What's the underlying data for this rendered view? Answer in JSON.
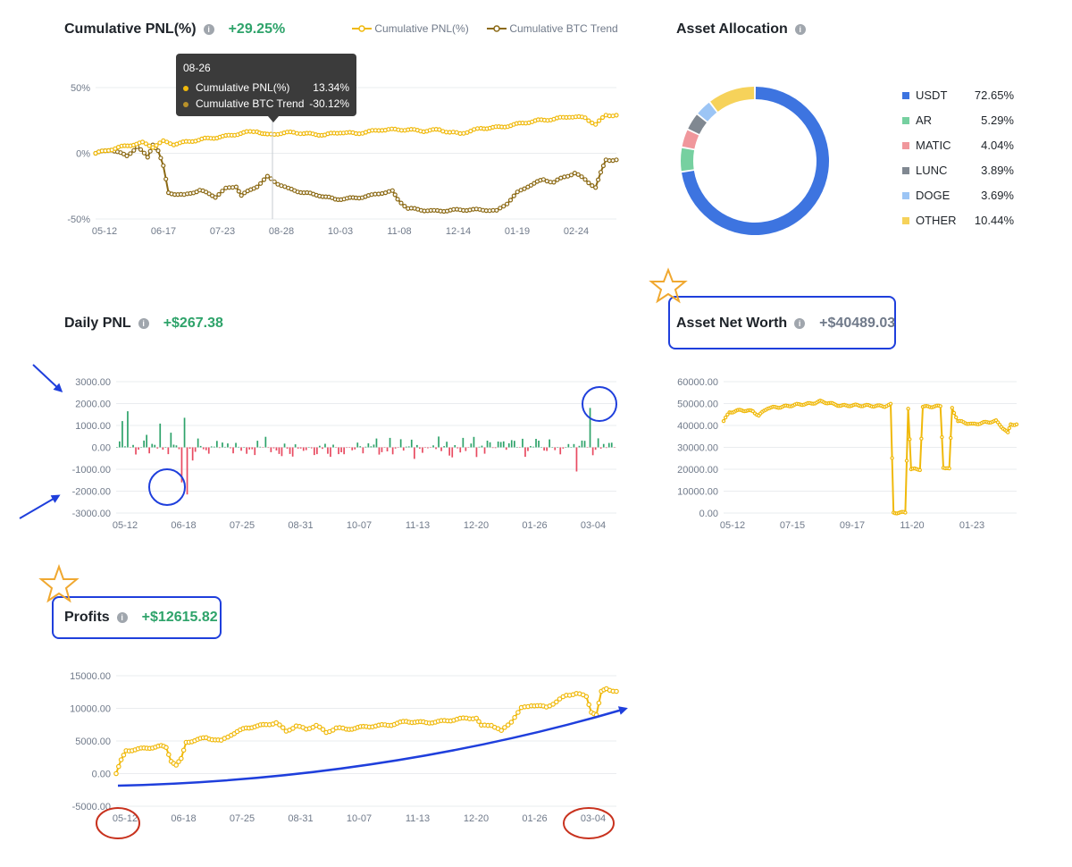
{
  "cumulative_pnl": {
    "title": "Cumulative PNL(%)",
    "value": "+29.25%",
    "legend": [
      "Cumulative PNL(%)",
      "Cumulative BTC Trend"
    ],
    "tooltip": {
      "date": "08-26",
      "rows": [
        {
          "name": "Cumulative PNL(%)",
          "value": "13.34%"
        },
        {
          "name": "Cumulative BTC Trend",
          "value": "-30.12%"
        }
      ]
    }
  },
  "asset_allocation": {
    "title": "Asset Allocation",
    "items": [
      {
        "name": "USDT",
        "pct": "72.65%"
      },
      {
        "name": "AR",
        "pct": "5.29%"
      },
      {
        "name": "MATIC",
        "pct": "4.04%"
      },
      {
        "name": "LUNC",
        "pct": "3.89%"
      },
      {
        "name": "DOGE",
        "pct": "3.69%"
      },
      {
        "name": "OTHER",
        "pct": "10.44%"
      }
    ]
  },
  "daily_pnl": {
    "title": "Daily PNL",
    "value": "+$267.38"
  },
  "asset_net_worth": {
    "title": "Asset Net Worth",
    "value": "+$40489.03"
  },
  "profits": {
    "title": "Profits",
    "value": "+$12615.82"
  },
  "colors": {
    "pnl": "#f0b90b",
    "btc": "#8b6914",
    "positive": "#2ea36a",
    "negative": "#e84b61",
    "usdt": "#3d74e0",
    "ar": "#76d0a0",
    "matic": "#f0979c",
    "lunc": "#808891",
    "doge": "#9cc5f5",
    "other": "#f6d25a",
    "annotation_blue": "#1f3fdc",
    "annotation_red": "#c8321e",
    "star": "#f0a830"
  },
  "chart_data": [
    {
      "type": "line",
      "title": "Cumulative PNL(%)",
      "x_ticks": [
        "05-12",
        "06-17",
        "07-23",
        "08-28",
        "10-03",
        "11-08",
        "12-14",
        "01-19",
        "02-24"
      ],
      "y_ticks": [
        "50%",
        "0%",
        "-50%"
      ],
      "ylim": [
        -50,
        50
      ],
      "grid": true,
      "legend_position": "top-right",
      "series": [
        {
          "name": "Cumulative PNL(%)",
          "points": [
            [
              0,
              0
            ],
            [
              0.05,
              5
            ],
            [
              0.09,
              8
            ],
            [
              0.11,
              5
            ],
            [
              0.13,
              9
            ],
            [
              0.15,
              7
            ],
            [
              0.18,
              9
            ],
            [
              0.21,
              11
            ],
            [
              0.25,
              13
            ],
            [
              0.29,
              16
            ],
            [
              0.31,
              17
            ],
            [
              0.32,
              15
            ],
            [
              0.33,
              14
            ],
            [
              0.35,
              15
            ],
            [
              0.38,
              16
            ],
            [
              0.4,
              15
            ],
            [
              0.44,
              14
            ],
            [
              0.47,
              16
            ],
            [
              0.5,
              15
            ],
            [
              0.55,
              18
            ],
            [
              0.6,
              18
            ],
            [
              0.63,
              17
            ],
            [
              0.66,
              18
            ],
            [
              0.68,
              16
            ],
            [
              0.7,
              15
            ],
            [
              0.72,
              17
            ],
            [
              0.74,
              19
            ],
            [
              0.78,
              20
            ],
            [
              0.82,
              23
            ],
            [
              0.85,
              25
            ],
            [
              0.88,
              26
            ],
            [
              0.91,
              28
            ],
            [
              0.94,
              27
            ],
            [
              0.96,
              22
            ],
            [
              0.98,
              29
            ],
            [
              1.0,
              29
            ]
          ]
        },
        {
          "name": "Cumulative BTC Trend",
          "points": [
            [
              0,
              0
            ],
            [
              0.03,
              3
            ],
            [
              0.06,
              -2
            ],
            [
              0.08,
              5
            ],
            [
              0.1,
              -3
            ],
            [
              0.11,
              7
            ],
            [
              0.12,
              2
            ],
            [
              0.13,
              -10
            ],
            [
              0.14,
              -30
            ],
            [
              0.17,
              -32
            ],
            [
              0.2,
              -28
            ],
            [
              0.23,
              -33
            ],
            [
              0.25,
              -27
            ],
            [
              0.27,
              -25
            ],
            [
              0.28,
              -32
            ],
            [
              0.31,
              -25
            ],
            [
              0.33,
              -18
            ],
            [
              0.35,
              -23
            ],
            [
              0.37,
              -27
            ],
            [
              0.4,
              -30
            ],
            [
              0.43,
              -32
            ],
            [
              0.46,
              -35
            ],
            [
              0.5,
              -34
            ],
            [
              0.53,
              -32
            ],
            [
              0.55,
              -30
            ],
            [
              0.57,
              -29
            ],
            [
              0.58,
              -35
            ],
            [
              0.6,
              -42
            ],
            [
              0.65,
              -44
            ],
            [
              0.7,
              -43
            ],
            [
              0.75,
              -43
            ],
            [
              0.77,
              -44
            ],
            [
              0.79,
              -38
            ],
            [
              0.81,
              -30
            ],
            [
              0.83,
              -25
            ],
            [
              0.86,
              -20
            ],
            [
              0.88,
              -22
            ],
            [
              0.9,
              -18
            ],
            [
              0.92,
              -15
            ],
            [
              0.94,
              -20
            ],
            [
              0.96,
              -26
            ],
            [
              0.97,
              -15
            ],
            [
              0.98,
              -5
            ],
            [
              1.0,
              -5
            ]
          ]
        }
      ]
    },
    {
      "type": "pie",
      "title": "Asset Allocation",
      "donut": true,
      "categories": [
        "USDT",
        "AR",
        "MATIC",
        "LUNC",
        "DOGE",
        "OTHER"
      ],
      "values": [
        72.65,
        5.29,
        4.04,
        3.89,
        3.69,
        10.44
      ],
      "legend_position": "right"
    },
    {
      "type": "bar",
      "title": "Daily PNL",
      "x_ticks": [
        "05-12",
        "06-18",
        "07-25",
        "08-31",
        "10-07",
        "11-13",
        "12-20",
        "01-26",
        "03-04"
      ],
      "y_ticks": [
        "3000.00",
        "2000.00",
        "1000.00",
        "0.00",
        "-1000.00",
        "-2000.00",
        "-3000.00"
      ],
      "ylim": [
        -3000,
        3000
      ],
      "grid": true
    },
    {
      "type": "line",
      "title": "Asset Net Worth",
      "x_ticks": [
        "05-12",
        "07-15",
        "09-17",
        "11-20",
        "01-23"
      ],
      "y_ticks": [
        "60000.00",
        "50000.00",
        "40000.00",
        "30000.00",
        "20000.00",
        "10000.00",
        "0.00"
      ],
      "ylim": [
        0,
        60000
      ],
      "grid": true,
      "series": [
        {
          "name": "",
          "points": [
            [
              0,
              42000
            ],
            [
              0.02,
              46000
            ],
            [
              0.06,
              47000
            ],
            [
              0.1,
              46500
            ],
            [
              0.12,
              44500
            ],
            [
              0.15,
              48000
            ],
            [
              0.2,
              48500
            ],
            [
              0.25,
              49500
            ],
            [
              0.3,
              50000
            ],
            [
              0.33,
              51000
            ],
            [
              0.36,
              50200
            ],
            [
              0.4,
              49000
            ],
            [
              0.45,
              49200
            ],
            [
              0.5,
              49000
            ],
            [
              0.55,
              48800
            ],
            [
              0.57,
              49500
            ],
            [
              0.58,
              200
            ],
            [
              0.62,
              200
            ],
            [
              0.63,
              48000
            ],
            [
              0.64,
              20000
            ],
            [
              0.67,
              20000
            ],
            [
              0.68,
              48500
            ],
            [
              0.74,
              48800
            ],
            [
              0.75,
              21000
            ],
            [
              0.77,
              20000
            ],
            [
              0.78,
              48000
            ],
            [
              0.8,
              42000
            ],
            [
              0.85,
              40500
            ],
            [
              0.9,
              41500
            ],
            [
              0.93,
              42000
            ],
            [
              0.96,
              38000
            ],
            [
              0.97,
              36500
            ],
            [
              0.98,
              40500
            ],
            [
              1.0,
              40500
            ]
          ]
        }
      ]
    },
    {
      "type": "line",
      "title": "Profits",
      "x_ticks": [
        "05-12",
        "06-18",
        "07-25",
        "08-31",
        "10-07",
        "11-13",
        "12-20",
        "01-26",
        "03-04"
      ],
      "y_ticks": [
        "15000.00",
        "10000.00",
        "5000.00",
        "0.00",
        "-5000.00"
      ],
      "ylim": [
        -5000,
        15000
      ],
      "grid": true,
      "series": [
        {
          "name": "",
          "points": [
            [
              0,
              0
            ],
            [
              0.01,
              2000
            ],
            [
              0.02,
              3500
            ],
            [
              0.05,
              3800
            ],
            [
              0.09,
              4200
            ],
            [
              0.1,
              4000
            ],
            [
              0.11,
              2000
            ],
            [
              0.12,
              1300
            ],
            [
              0.13,
              2200
            ],
            [
              0.14,
              4800
            ],
            [
              0.18,
              5500
            ],
            [
              0.21,
              5000
            ],
            [
              0.23,
              6000
            ],
            [
              0.26,
              7000
            ],
            [
              0.3,
              7500
            ],
            [
              0.32,
              7800
            ],
            [
              0.34,
              6500
            ],
            [
              0.36,
              7300
            ],
            [
              0.38,
              6800
            ],
            [
              0.4,
              7400
            ],
            [
              0.42,
              6300
            ],
            [
              0.44,
              7000
            ],
            [
              0.46,
              6800
            ],
            [
              0.5,
              7200
            ],
            [
              0.55,
              7500
            ],
            [
              0.58,
              8000
            ],
            [
              0.62,
              7800
            ],
            [
              0.65,
              8000
            ],
            [
              0.7,
              8500
            ],
            [
              0.72,
              8500
            ],
            [
              0.73,
              7300
            ],
            [
              0.75,
              7500
            ],
            [
              0.77,
              6500
            ],
            [
              0.79,
              8000
            ],
            [
              0.81,
              10000
            ],
            [
              0.83,
              10500
            ],
            [
              0.86,
              10200
            ],
            [
              0.88,
              11000
            ],
            [
              0.9,
              12000
            ],
            [
              0.92,
              12300
            ],
            [
              0.94,
              11800
            ],
            [
              0.95,
              9500
            ],
            [
              0.96,
              9000
            ],
            [
              0.97,
              12500
            ],
            [
              0.98,
              13000
            ],
            [
              1.0,
              12600
            ]
          ]
        }
      ]
    }
  ]
}
